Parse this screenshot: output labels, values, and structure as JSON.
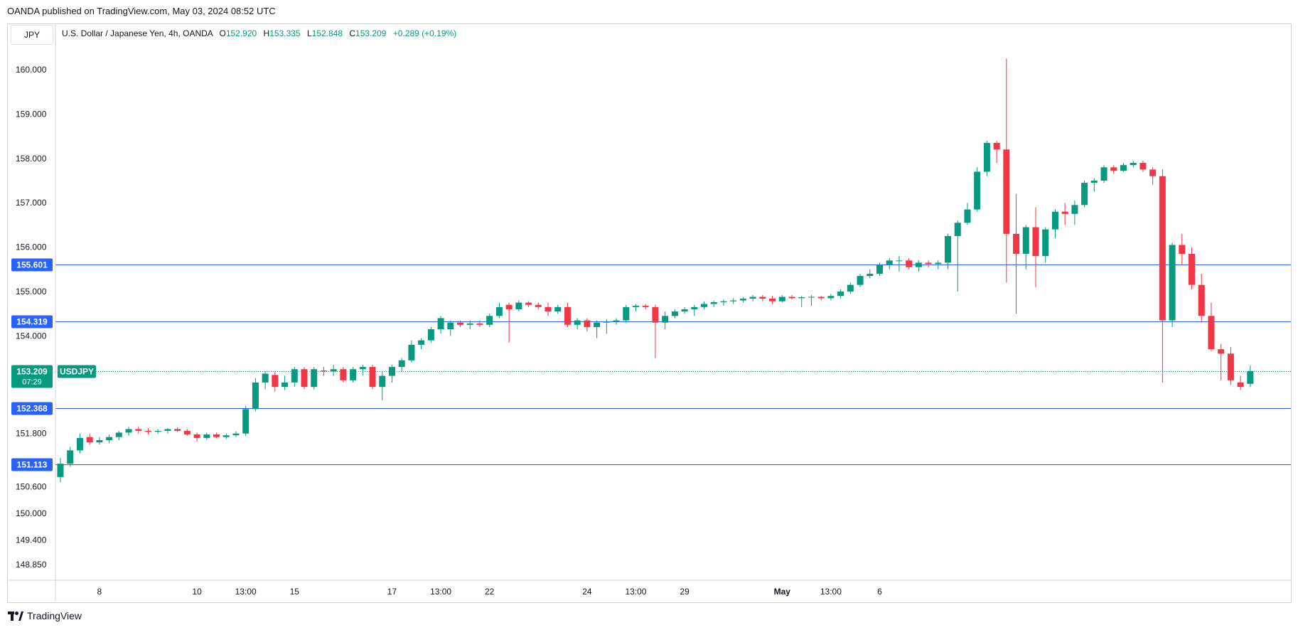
{
  "header": {
    "published": "OANDA published on TradingView.com, May 03, 2024 08:52 UTC"
  },
  "pair_box": "JPY",
  "legend": {
    "title": "U.S. Dollar / Japanese Yen, 4h, OANDA",
    "open_label": "O",
    "open": "152.920",
    "high_label": "H",
    "high": "153.335",
    "low_label": "L",
    "low": "152.848",
    "close_label": "C",
    "close": "153.209",
    "change": "+0.289 (+0.19%)"
  },
  "footer": {
    "brand": "TradingView",
    "logo_icon": "tradingview-logo-icon"
  },
  "colors": {
    "up": "#089981",
    "down": "#f23645",
    "level_line": "#2962ff",
    "level_badge": "#2962ff",
    "price_line": "#089981",
    "axis": "#d1d4dc"
  },
  "chart_data": {
    "type": "candlestick",
    "symbol": "USDJPY",
    "interval": "4h",
    "y_ticks": [
      "160.000",
      "159.000",
      "158.000",
      "157.000",
      "156.000",
      "155.000",
      "154.000",
      "151.800",
      "150.600",
      "150.000",
      "149.400",
      "148.850"
    ],
    "y_tick_values": [
      160.0,
      159.0,
      158.0,
      157.0,
      156.0,
      155.0,
      154.0,
      151.8,
      150.6,
      150.0,
      149.4,
      148.85
    ],
    "x_ticks": [
      {
        "label": "8",
        "index": 4
      },
      {
        "label": "10",
        "index": 14
      },
      {
        "label": "13:00",
        "index": 19
      },
      {
        "label": "15",
        "index": 24
      },
      {
        "label": "17",
        "index": 34
      },
      {
        "label": "13:00",
        "index": 39
      },
      {
        "label": "22",
        "index": 44
      },
      {
        "label": "24",
        "index": 54
      },
      {
        "label": "13:00",
        "index": 59
      },
      {
        "label": "29",
        "index": 64
      },
      {
        "label": "May",
        "index": 74
      },
      {
        "label": "13:00",
        "index": 79
      },
      {
        "label": "6",
        "index": 84
      }
    ],
    "horizontal_levels": [
      {
        "label": "155.601",
        "value": 155.601
      },
      {
        "label": "154.319",
        "value": 154.319
      },
      {
        "label": "152.368",
        "value": 152.368
      },
      {
        "label": "151.113",
        "value": 151.113
      }
    ],
    "last_price": {
      "label": "153.209",
      "value": 153.209,
      "symbol": "USDJPY",
      "countdown": "07:29"
    },
    "candles": [
      {
        "o": 150.82,
        "h": 151.25,
        "l": 150.7,
        "c": 151.12
      },
      {
        "o": 151.12,
        "h": 151.5,
        "l": 151.05,
        "c": 151.42
      },
      {
        "o": 151.42,
        "h": 151.8,
        "l": 151.35,
        "c": 151.7
      },
      {
        "o": 151.72,
        "h": 151.8,
        "l": 151.55,
        "c": 151.6
      },
      {
        "o": 151.6,
        "h": 151.72,
        "l": 151.55,
        "c": 151.65
      },
      {
        "o": 151.65,
        "h": 151.78,
        "l": 151.58,
        "c": 151.72
      },
      {
        "o": 151.72,
        "h": 151.86,
        "l": 151.65,
        "c": 151.82
      },
      {
        "o": 151.82,
        "h": 151.95,
        "l": 151.75,
        "c": 151.9
      },
      {
        "o": 151.9,
        "h": 151.96,
        "l": 151.8,
        "c": 151.86
      },
      {
        "o": 151.86,
        "h": 151.92,
        "l": 151.78,
        "c": 151.84
      },
      {
        "o": 151.84,
        "h": 151.9,
        "l": 151.8,
        "c": 151.86
      },
      {
        "o": 151.86,
        "h": 151.92,
        "l": 151.8,
        "c": 151.9
      },
      {
        "o": 151.9,
        "h": 151.94,
        "l": 151.84,
        "c": 151.86
      },
      {
        "o": 151.86,
        "h": 151.9,
        "l": 151.75,
        "c": 151.78
      },
      {
        "o": 151.78,
        "h": 151.82,
        "l": 151.62,
        "c": 151.7
      },
      {
        "o": 151.7,
        "h": 151.82,
        "l": 151.66,
        "c": 151.78
      },
      {
        "o": 151.78,
        "h": 151.82,
        "l": 151.7,
        "c": 151.72
      },
      {
        "o": 151.72,
        "h": 151.8,
        "l": 151.68,
        "c": 151.76
      },
      {
        "o": 151.76,
        "h": 151.85,
        "l": 151.72,
        "c": 151.8
      },
      {
        "o": 151.8,
        "h": 152.42,
        "l": 151.75,
        "c": 152.35
      },
      {
        "o": 152.35,
        "h": 153.05,
        "l": 152.3,
        "c": 152.95
      },
      {
        "o": 152.95,
        "h": 153.2,
        "l": 152.8,
        "c": 153.15
      },
      {
        "o": 153.12,
        "h": 153.2,
        "l": 152.75,
        "c": 152.85
      },
      {
        "o": 152.85,
        "h": 153.1,
        "l": 152.78,
        "c": 152.95
      },
      {
        "o": 152.95,
        "h": 153.3,
        "l": 152.85,
        "c": 153.25
      },
      {
        "o": 153.25,
        "h": 153.3,
        "l": 152.8,
        "c": 152.85
      },
      {
        "o": 152.85,
        "h": 153.3,
        "l": 152.8,
        "c": 153.25
      },
      {
        "o": 153.22,
        "h": 153.3,
        "l": 153.1,
        "c": 153.2
      },
      {
        "o": 153.2,
        "h": 153.35,
        "l": 153.1,
        "c": 153.25
      },
      {
        "o": 153.25,
        "h": 153.3,
        "l": 152.95,
        "c": 153.0
      },
      {
        "o": 153.0,
        "h": 153.3,
        "l": 152.95,
        "c": 153.25
      },
      {
        "o": 153.25,
        "h": 153.35,
        "l": 153.1,
        "c": 153.3
      },
      {
        "o": 153.3,
        "h": 153.35,
        "l": 152.8,
        "c": 152.85
      },
      {
        "o": 152.85,
        "h": 153.2,
        "l": 152.55,
        "c": 153.1
      },
      {
        "o": 153.1,
        "h": 153.35,
        "l": 152.95,
        "c": 153.3
      },
      {
        "o": 153.3,
        "h": 153.5,
        "l": 153.2,
        "c": 153.45
      },
      {
        "o": 153.45,
        "h": 153.9,
        "l": 153.4,
        "c": 153.8
      },
      {
        "o": 153.8,
        "h": 153.95,
        "l": 153.7,
        "c": 153.9
      },
      {
        "o": 153.9,
        "h": 154.2,
        "l": 153.85,
        "c": 154.15
      },
      {
        "o": 154.15,
        "h": 154.45,
        "l": 154.05,
        "c": 154.4
      },
      {
        "o": 154.15,
        "h": 154.35,
        "l": 154.0,
        "c": 154.3
      },
      {
        "o": 154.3,
        "h": 154.35,
        "l": 154.2,
        "c": 154.25
      },
      {
        "o": 154.25,
        "h": 154.35,
        "l": 154.15,
        "c": 154.28
      },
      {
        "o": 154.28,
        "h": 154.35,
        "l": 154.2,
        "c": 154.25
      },
      {
        "o": 154.25,
        "h": 154.5,
        "l": 154.2,
        "c": 154.45
      },
      {
        "o": 154.45,
        "h": 154.75,
        "l": 154.4,
        "c": 154.65
      },
      {
        "o": 154.7,
        "h": 154.75,
        "l": 153.85,
        "c": 154.6
      },
      {
        "o": 154.6,
        "h": 154.8,
        "l": 154.55,
        "c": 154.75
      },
      {
        "o": 154.75,
        "h": 154.78,
        "l": 154.65,
        "c": 154.7
      },
      {
        "o": 154.7,
        "h": 154.75,
        "l": 154.6,
        "c": 154.65
      },
      {
        "o": 154.65,
        "h": 154.75,
        "l": 154.45,
        "c": 154.55
      },
      {
        "o": 154.55,
        "h": 154.7,
        "l": 154.5,
        "c": 154.65
      },
      {
        "o": 154.65,
        "h": 154.75,
        "l": 154.2,
        "c": 154.25
      },
      {
        "o": 154.25,
        "h": 154.4,
        "l": 154.15,
        "c": 154.35
      },
      {
        "o": 154.35,
        "h": 154.4,
        "l": 154.1,
        "c": 154.2
      },
      {
        "o": 154.2,
        "h": 154.35,
        "l": 153.95,
        "c": 154.3
      },
      {
        "o": 154.3,
        "h": 154.38,
        "l": 154.05,
        "c": 154.32
      },
      {
        "o": 154.32,
        "h": 154.4,
        "l": 154.25,
        "c": 154.35
      },
      {
        "o": 154.35,
        "h": 154.7,
        "l": 154.3,
        "c": 154.65
      },
      {
        "o": 154.65,
        "h": 154.72,
        "l": 154.55,
        "c": 154.68
      },
      {
        "o": 154.68,
        "h": 154.72,
        "l": 154.6,
        "c": 154.65
      },
      {
        "o": 154.65,
        "h": 154.7,
        "l": 153.5,
        "c": 154.3
      },
      {
        "o": 154.3,
        "h": 154.55,
        "l": 154.15,
        "c": 154.45
      },
      {
        "o": 154.45,
        "h": 154.6,
        "l": 154.4,
        "c": 154.55
      },
      {
        "o": 154.55,
        "h": 154.65,
        "l": 154.5,
        "c": 154.6
      },
      {
        "o": 154.6,
        "h": 154.7,
        "l": 154.45,
        "c": 154.65
      },
      {
        "o": 154.65,
        "h": 154.78,
        "l": 154.6,
        "c": 154.72
      },
      {
        "o": 154.72,
        "h": 154.8,
        "l": 154.65,
        "c": 154.76
      },
      {
        "o": 154.76,
        "h": 154.82,
        "l": 154.68,
        "c": 154.78
      },
      {
        "o": 154.78,
        "h": 154.85,
        "l": 154.72,
        "c": 154.8
      },
      {
        "o": 154.8,
        "h": 154.88,
        "l": 154.75,
        "c": 154.84
      },
      {
        "o": 154.84,
        "h": 154.92,
        "l": 154.78,
        "c": 154.88
      },
      {
        "o": 154.88,
        "h": 154.92,
        "l": 154.78,
        "c": 154.84
      },
      {
        "o": 154.84,
        "h": 154.9,
        "l": 154.72,
        "c": 154.78
      },
      {
        "o": 154.78,
        "h": 154.92,
        "l": 154.75,
        "c": 154.88
      },
      {
        "o": 154.88,
        "h": 154.92,
        "l": 154.82,
        "c": 154.85
      },
      {
        "o": 154.85,
        "h": 154.9,
        "l": 154.65,
        "c": 154.87
      },
      {
        "o": 154.87,
        "h": 154.92,
        "l": 154.68,
        "c": 154.88
      },
      {
        "o": 154.88,
        "h": 154.9,
        "l": 154.8,
        "c": 154.85
      },
      {
        "o": 154.85,
        "h": 154.95,
        "l": 154.8,
        "c": 154.9
      },
      {
        "o": 154.9,
        "h": 155.05,
        "l": 154.85,
        "c": 155.0
      },
      {
        "o": 155.0,
        "h": 155.2,
        "l": 154.95,
        "c": 155.15
      },
      {
        "o": 155.15,
        "h": 155.4,
        "l": 155.1,
        "c": 155.35
      },
      {
        "o": 155.35,
        "h": 155.5,
        "l": 155.3,
        "c": 155.4
      },
      {
        "o": 155.4,
        "h": 155.65,
        "l": 155.35,
        "c": 155.6
      },
      {
        "o": 155.6,
        "h": 155.75,
        "l": 155.5,
        "c": 155.7
      },
      {
        "o": 155.7,
        "h": 155.8,
        "l": 155.45,
        "c": 155.7
      },
      {
        "o": 155.7,
        "h": 155.75,
        "l": 155.5,
        "c": 155.55
      },
      {
        "o": 155.55,
        "h": 155.7,
        "l": 155.45,
        "c": 155.65
      },
      {
        "o": 155.65,
        "h": 155.7,
        "l": 155.55,
        "c": 155.62
      },
      {
        "o": 155.62,
        "h": 155.7,
        "l": 155.5,
        "c": 155.65
      },
      {
        "o": 155.65,
        "h": 156.3,
        "l": 155.5,
        "c": 156.25
      },
      {
        "o": 156.25,
        "h": 156.6,
        "l": 155.0,
        "c": 156.55
      },
      {
        "o": 156.55,
        "h": 157.0,
        "l": 156.5,
        "c": 156.85
      },
      {
        "o": 156.85,
        "h": 157.8,
        "l": 156.8,
        "c": 157.7
      },
      {
        "o": 157.7,
        "h": 158.4,
        "l": 157.6,
        "c": 158.35
      },
      {
        "o": 158.35,
        "h": 158.4,
        "l": 157.9,
        "c": 158.2
      },
      {
        "o": 158.2,
        "h": 160.25,
        "l": 155.2,
        "c": 156.3
      },
      {
        "o": 156.3,
        "h": 157.2,
        "l": 154.5,
        "c": 155.85
      },
      {
        "o": 155.85,
        "h": 156.5,
        "l": 155.5,
        "c": 156.45
      },
      {
        "o": 156.45,
        "h": 156.9,
        "l": 155.1,
        "c": 155.8
      },
      {
        "o": 155.8,
        "h": 156.45,
        "l": 155.65,
        "c": 156.4
      },
      {
        "o": 156.4,
        "h": 156.85,
        "l": 156.2,
        "c": 156.8
      },
      {
        "o": 156.8,
        "h": 157.0,
        "l": 156.5,
        "c": 156.75
      },
      {
        "o": 156.75,
        "h": 157.05,
        "l": 156.5,
        "c": 156.95
      },
      {
        "o": 156.95,
        "h": 157.5,
        "l": 156.9,
        "c": 157.45
      },
      {
        "o": 157.45,
        "h": 157.55,
        "l": 157.25,
        "c": 157.5
      },
      {
        "o": 157.5,
        "h": 157.85,
        "l": 157.45,
        "c": 157.8
      },
      {
        "o": 157.8,
        "h": 157.85,
        "l": 157.65,
        "c": 157.72
      },
      {
        "o": 157.72,
        "h": 157.9,
        "l": 157.7,
        "c": 157.85
      },
      {
        "o": 157.85,
        "h": 157.95,
        "l": 157.8,
        "c": 157.9
      },
      {
        "o": 157.9,
        "h": 157.95,
        "l": 157.7,
        "c": 157.75
      },
      {
        "o": 157.75,
        "h": 157.8,
        "l": 157.4,
        "c": 157.6
      },
      {
        "o": 157.6,
        "h": 157.75,
        "l": 152.95,
        "c": 154.35
      },
      {
        "o": 154.35,
        "h": 156.1,
        "l": 154.2,
        "c": 156.05
      },
      {
        "o": 156.05,
        "h": 156.3,
        "l": 155.6,
        "c": 155.85
      },
      {
        "o": 155.85,
        "h": 156.0,
        "l": 155.05,
        "c": 155.15
      },
      {
        "o": 155.15,
        "h": 155.4,
        "l": 154.3,
        "c": 154.45
      },
      {
        "o": 154.45,
        "h": 154.75,
        "l": 153.65,
        "c": 153.7
      },
      {
        "o": 153.7,
        "h": 153.82,
        "l": 153.0,
        "c": 153.6
      },
      {
        "o": 153.6,
        "h": 153.75,
        "l": 152.9,
        "c": 153.0
      },
      {
        "o": 152.95,
        "h": 153.1,
        "l": 152.78,
        "c": 152.85
      },
      {
        "o": 152.92,
        "h": 153.335,
        "l": 152.848,
        "c": 153.209
      }
    ]
  }
}
